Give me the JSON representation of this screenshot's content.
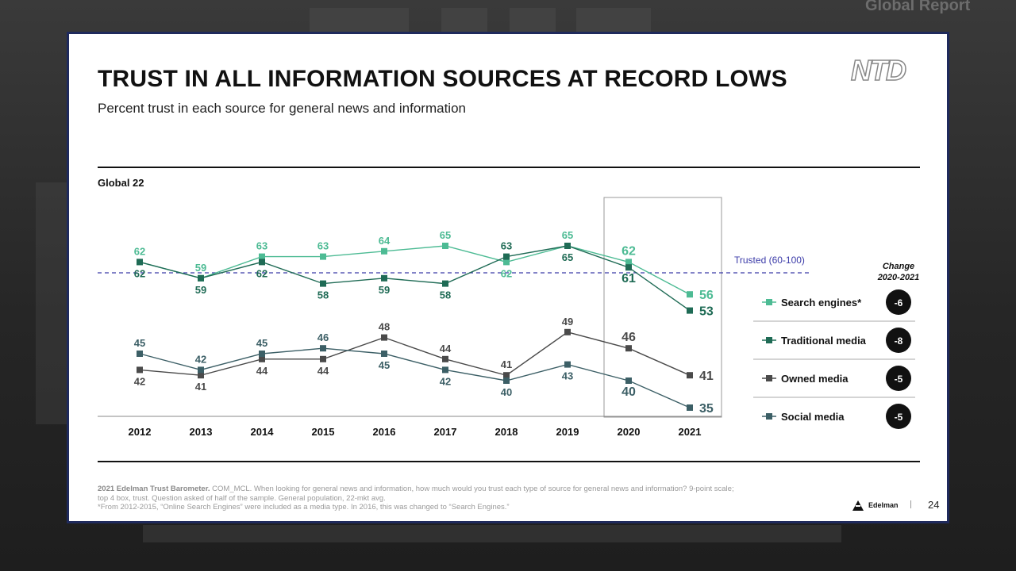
{
  "background": {
    "header_text": "Global Report"
  },
  "slide": {
    "title": "TRUST IN ALL INFORMATION SOURCES AT RECORD LOWS",
    "subtitle": "Percent trust in each source for general news and information",
    "region_label": "Global 22",
    "logo_text": "NTD",
    "brand": "Edelman",
    "page_number": "24",
    "footnote_source": "2021 Edelman Trust Barometer.",
    "footnote_line1": " COM_MCL. When looking for general news and information, how much would you trust each type of source for general news and information? 9-point scale;",
    "footnote_line2": "top 4 box, trust. Question asked of half of the sample. General population, 22-mkt avg.",
    "footnote_line3": "*From 2012-2015, “Online Search Engines” were included as a media type. In 2016, this was changed to “Search Engines.”"
  },
  "chart_data": {
    "type": "line",
    "x": [
      "2012",
      "2013",
      "2014",
      "2015",
      "2016",
      "2017",
      "2018",
      "2019",
      "2020",
      "2021"
    ],
    "series": [
      {
        "name": "Search engines*",
        "values": [
          62,
          59,
          63,
          63,
          64,
          65,
          62,
          65,
          62,
          56
        ],
        "color": "#4dbb94",
        "change": "-6"
      },
      {
        "name": "Traditional media",
        "values": [
          62,
          59,
          62,
          58,
          59,
          58,
          63,
          65,
          61,
          53
        ],
        "color": "#1f6b55",
        "change": "-8"
      },
      {
        "name": "Owned media",
        "values": [
          42,
          41,
          44,
          44,
          48,
          44,
          41,
          49,
          46,
          41
        ],
        "color": "#4a4a4a",
        "change": "-5"
      },
      {
        "name": "Social media",
        "values": [
          45,
          42,
          45,
          46,
          45,
          42,
          40,
          43,
          40,
          35
        ],
        "color": "#3c5f66",
        "change": "-5"
      }
    ],
    "threshold": {
      "value": 60,
      "label": "Trusted (60-100)",
      "color": "#3a3aa8"
    },
    "legend_heading": [
      "Change",
      "2020-2021"
    ],
    "highlight_years": [
      "2020",
      "2021"
    ]
  }
}
